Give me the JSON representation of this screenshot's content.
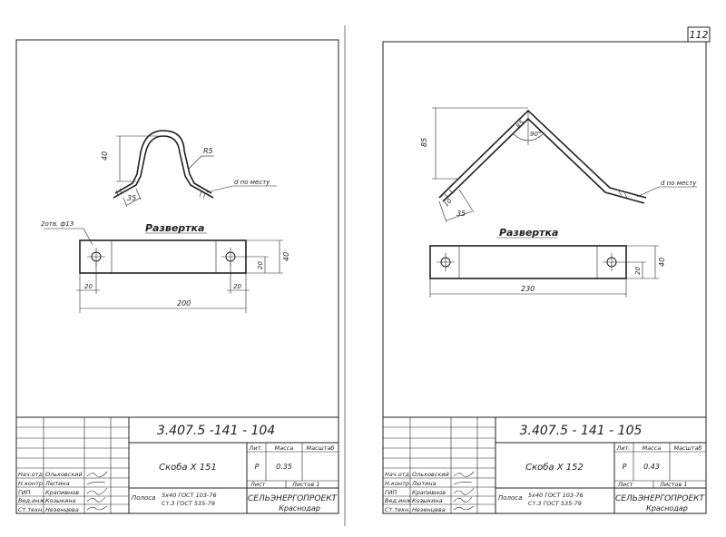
{
  "page_number": "112",
  "left_sheet": {
    "drawing_labels": {
      "height": "40",
      "radius": "R5",
      "foot": "35",
      "thickness_note": "d по месту",
      "hole_note": "2отв. ф13",
      "development_title": "Развертка",
      "dev_height": "40",
      "dev_hole_pos": "20",
      "dev_end_left": "20",
      "dev_end_right": "20",
      "dev_length": "200"
    },
    "title_block": {
      "doc_code": "3.407.5 -141 - 104",
      "item_name": "Скоба  Х 151",
      "header_lit": "Лит.",
      "header_mass": "Масса",
      "header_scale": "Масштаб",
      "lit_value": "Р",
      "mass_value": "0.35",
      "sheet": "Лист",
      "sheets": "Листов 1",
      "material_label": "Полоса",
      "material_line1": "5х40 ГОСТ 103-76",
      "material_line2": "Ст.3 ГОСТ 535-79",
      "org": "СЕЛЬЭНЕРГОПРОЕКТ",
      "city": "Краснодар",
      "signers": [
        {
          "role": "Нач.отд.",
          "name": "Ольховский"
        },
        {
          "role": "Н.контр.",
          "name": "Лютина"
        },
        {
          "role": "ГИП",
          "name": "Крапивнов"
        },
        {
          "role": "Вед.инж.",
          "name": "Козыкина"
        },
        {
          "role": "Ст.техн.",
          "name": "Незенцева"
        }
      ]
    }
  },
  "right_sheet": {
    "drawing_labels": {
      "height": "85",
      "radius": "R5",
      "angle": "90°",
      "foot1": "10",
      "foot2": "35",
      "thickness_note": "d по месту",
      "development_title": "Развертка",
      "dev_height": "40",
      "dev_hole_pos": "20",
      "dev_length": "230"
    },
    "title_block": {
      "doc_code": "3.407.5 - 141 - 105",
      "item_name": "Скоба  Х 152",
      "header_lit": "Лит.",
      "header_mass": "Масса",
      "header_scale": "Масштаб",
      "lit_value": "Р",
      "mass_value": "0.43",
      "sheet": "Лист",
      "sheets": "Листов 1",
      "material_label": "Полоса",
      "material_line1": "5х40 ГОСТ 103-76",
      "material_line2": "Ст.3 ГОСТ 535-79",
      "org": "СЕЛЬЭНЕРГОПРОЕКТ",
      "city": "Краснодар",
      "signers": [
        {
          "role": "Нач.отд.",
          "name": "Ольховский"
        },
        {
          "role": "Н.контр.",
          "name": "Лютина"
        },
        {
          "role": "ГИП",
          "name": "Крапивнов"
        },
        {
          "role": "Вед.инж.",
          "name": "Козыкина"
        },
        {
          "role": "Ст.техн.",
          "name": "Незенцева"
        }
      ]
    }
  }
}
